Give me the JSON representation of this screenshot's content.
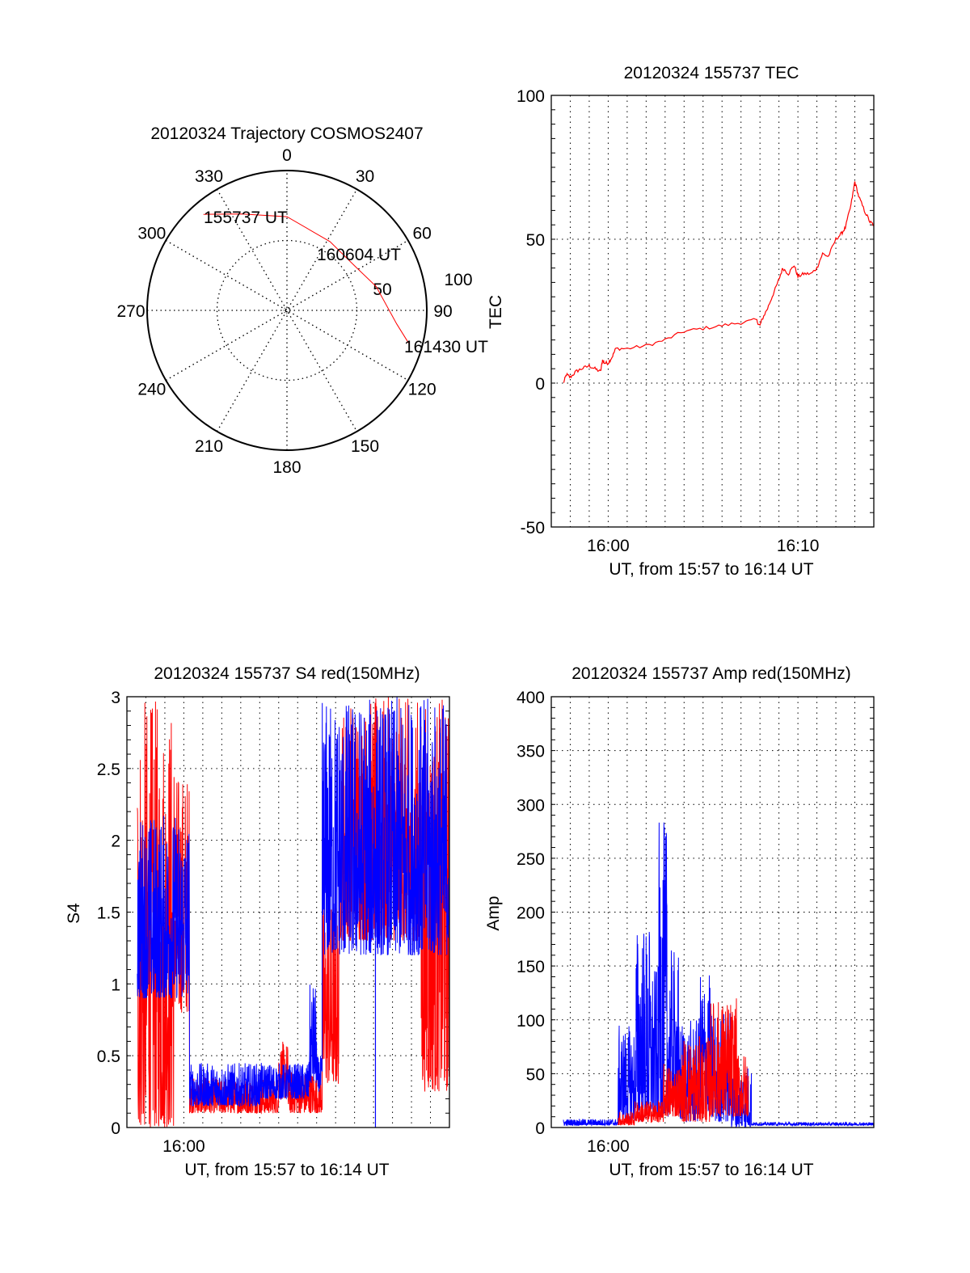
{
  "chart_data": [
    {
      "id": "polar",
      "type": "scatter",
      "subtype": "polar-trajectory",
      "title": "20120324 Trajectory COSMOS2407",
      "radial_label": "TEC",
      "radial_ticks": [
        "50",
        "100"
      ],
      "radial_range": [
        0,
        100
      ],
      "angle_ticks": [
        "0",
        "30",
        "60",
        "90",
        "120",
        "150",
        "180",
        "210",
        "240",
        "270",
        "300",
        "330"
      ],
      "trajectory_color": "#ff0000",
      "trajectory": [
        [
          319,
          91
        ],
        [
          335,
          76
        ],
        [
          0,
          67
        ],
        [
          32,
          58
        ],
        [
          57,
          58
        ],
        [
          75,
          66
        ],
        [
          97,
          79
        ],
        [
          105,
          90
        ]
      ],
      "annotations": [
        {
          "text": "155737 UT",
          "at": "start"
        },
        {
          "text": "160604 UT",
          "at": "middle"
        },
        {
          "text": "161430 UT",
          "at": "end"
        }
      ]
    },
    {
      "id": "tec",
      "type": "line",
      "title": "20120324 155737 TEC",
      "xlabel": "UT, from 15:57 to 16:14 UT",
      "ylabel": "TEC",
      "x_units": "minutes after 15:57",
      "xlim": [
        0,
        17
      ],
      "ylim": [
        -50,
        100
      ],
      "xticks": [
        {
          "value": 3,
          "label": "16:00"
        },
        {
          "value": 13,
          "label": "16:10"
        }
      ],
      "yticks": [
        {
          "value": -50,
          "label": "-50"
        },
        {
          "value": 0,
          "label": "0"
        },
        {
          "value": 50,
          "label": "50"
        },
        {
          "value": 100,
          "label": "100"
        }
      ],
      "grid": true,
      "series": [
        {
          "name": "TEC",
          "color": "#ff0000",
          "x": [
            0.64,
            0.8,
            1.0,
            1.3,
            1.6,
            2.0,
            2.3,
            2.6,
            2.7,
            2.8,
            3.0,
            3.2,
            3.4,
            4.0,
            5.0,
            6.0,
            7.0,
            8.0,
            9.0,
            10.0,
            10.8,
            11.0,
            11.1,
            11.4,
            11.7,
            12.0,
            12.2,
            12.5,
            12.8,
            13.0,
            13.3,
            13.7,
            14.0,
            14.3,
            14.6,
            15.0,
            15.3,
            15.5,
            15.8,
            16.0,
            16.2,
            16.5,
            16.8,
            17.0
          ],
          "y": [
            0,
            3,
            2,
            4,
            5,
            6,
            5,
            4,
            8,
            7,
            7,
            9,
            12,
            12,
            13,
            15,
            18,
            19,
            20,
            21,
            22,
            20,
            22,
            26,
            31,
            36,
            40,
            38,
            41,
            37,
            38,
            38,
            40,
            45,
            44,
            50,
            52,
            54,
            62,
            70,
            65,
            60,
            56,
            55
          ]
        }
      ]
    },
    {
      "id": "s4",
      "type": "line",
      "title": "20120324 155737 S4 red(150MHz)",
      "xlabel": "UT, from 15:57 to 16:14 UT",
      "ylabel": "S4",
      "x_units": "minutes after 15:57",
      "xlim": [
        0,
        17
      ],
      "ylim": [
        0,
        3
      ],
      "xticks": [
        {
          "value": 3,
          "label": "16:00"
        }
      ],
      "yticks": [
        {
          "value": 0,
          "label": "0"
        },
        {
          "value": 0.5,
          "label": "0.5"
        },
        {
          "value": 1,
          "label": "1"
        },
        {
          "value": 1.5,
          "label": "1.5"
        },
        {
          "value": 2,
          "label": "2"
        },
        {
          "value": 2.5,
          "label": "2.5"
        },
        {
          "value": 3,
          "label": "3"
        }
      ],
      "grid": true,
      "series": [
        {
          "name": "red",
          "color": "#ff0000",
          "envelope": [
            [
              0.55,
              2.5,
              0,
              3
            ],
            [
              2.5,
              3.3,
              0.8,
              2.5
            ],
            [
              3.3,
              8.0,
              0.1,
              0.35
            ],
            [
              8.0,
              8.5,
              0.2,
              0.6
            ],
            [
              8.5,
              10.3,
              0.1,
              0.4
            ],
            [
              10.3,
              11.2,
              0.3,
              1.6
            ],
            [
              11.2,
              15.5,
              1.3,
              3
            ],
            [
              15.5,
              17,
              0.25,
              3
            ]
          ]
        },
        {
          "name": "blue",
          "color": "#0000ff",
          "envelope": [
            [
              0.55,
              3.3,
              0.9,
              2.2
            ],
            [
              3.3,
              7.0,
              0.15,
              0.45
            ],
            [
              7.0,
              9.6,
              0.2,
              0.45
            ],
            [
              9.6,
              10.0,
              0.3,
              1.0
            ],
            [
              10.0,
              10.3,
              0.25,
              0.5
            ],
            [
              10.3,
              17,
              1.2,
              3
            ]
          ]
        }
      ]
    },
    {
      "id": "amp",
      "type": "line",
      "title": "20120324 155737 Amp red(150MHz)",
      "xlabel": "UT, from 15:57 to 16:14 UT",
      "ylabel": "Amp",
      "x_units": "minutes after 15:57",
      "xlim": [
        0,
        17
      ],
      "ylim": [
        0,
        400
      ],
      "xticks": [
        {
          "value": 3,
          "label": "16:00"
        }
      ],
      "yticks": [
        {
          "value": 0,
          "label": "0"
        },
        {
          "value": 50,
          "label": "50"
        },
        {
          "value": 100,
          "label": "100"
        },
        {
          "value": 150,
          "label": "150"
        },
        {
          "value": 200,
          "label": "200"
        },
        {
          "value": 250,
          "label": "250"
        },
        {
          "value": 300,
          "label": "300"
        },
        {
          "value": 350,
          "label": "350"
        },
        {
          "value": 400,
          "label": "400"
        }
      ],
      "grid": true,
      "series": [
        {
          "name": "blue",
          "color": "#0000ff",
          "envelope": [
            [
              0.64,
              3.53,
              2,
              8
            ],
            [
              3.53,
              4.47,
              5,
              95
            ],
            [
              4.47,
              5.23,
              5,
              190
            ],
            [
              5.23,
              5.66,
              10,
              150
            ],
            [
              5.66,
              6.1,
              10,
              285
            ],
            [
              6.1,
              6.7,
              10,
              165
            ],
            [
              6.7,
              7.8,
              5,
              100
            ],
            [
              7.8,
              8.4,
              10,
              145
            ],
            [
              8.4,
              9.5,
              5,
              110
            ],
            [
              9.5,
              10.55,
              0,
              60
            ],
            [
              10.55,
              17,
              2,
              5
            ]
          ]
        },
        {
          "name": "red",
          "color": "#ff0000",
          "envelope": [
            [
              3.53,
              4.4,
              2,
              15
            ],
            [
              4.4,
              5.9,
              5,
              25
            ],
            [
              5.9,
              6.9,
              10,
              60
            ],
            [
              6.9,
              8.4,
              5,
              85
            ],
            [
              8.4,
              9.8,
              10,
              120
            ],
            [
              9.8,
              10.4,
              10,
              70
            ]
          ]
        }
      ]
    }
  ]
}
